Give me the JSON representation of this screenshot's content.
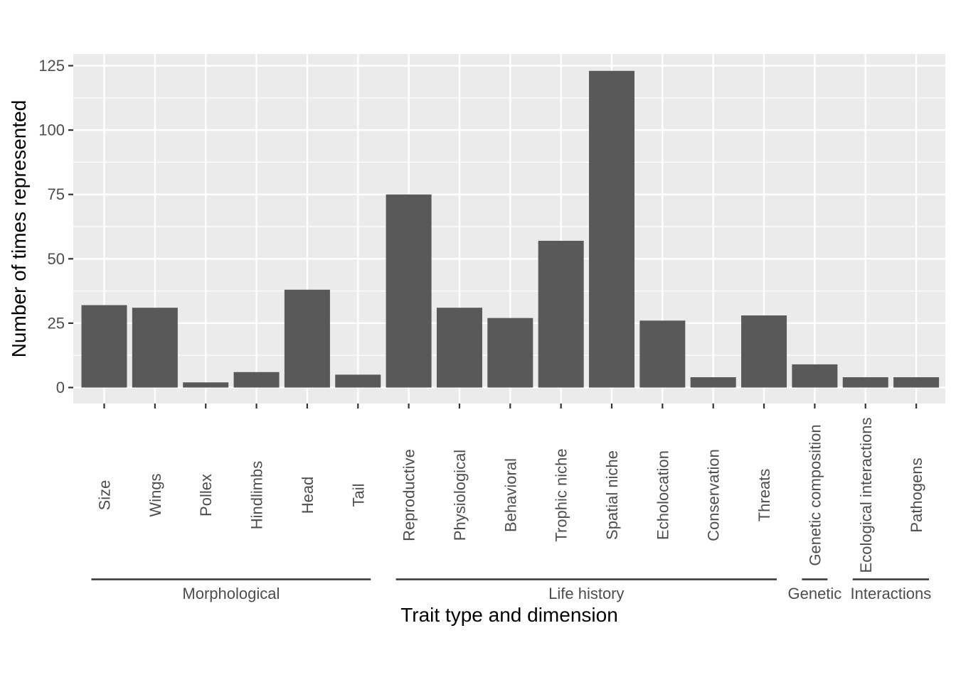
{
  "chart_data": {
    "type": "bar",
    "title": "",
    "xlabel": "Trait type and dimension",
    "ylabel": "Number of times represented",
    "ylim": [
      0,
      125
    ],
    "yticks": [
      0,
      25,
      50,
      75,
      100,
      125
    ],
    "grid": true,
    "legend": "none",
    "categories": [
      "Size",
      "Wings",
      "Pollex",
      "Hindlimbs",
      "Head",
      "Tail",
      "Reproductive",
      "Physiological",
      "Behavioral",
      "Trophic niche",
      "Spatial niche",
      "Echolocation",
      "Conservation",
      "Threats",
      "Genetic composition",
      "Ecological interactions",
      "Pathogens"
    ],
    "values": [
      32,
      31,
      2,
      6,
      38,
      5,
      75,
      31,
      27,
      57,
      123,
      26,
      4,
      28,
      9,
      4,
      4
    ],
    "groups": [
      {
        "name": "Morphological",
        "categories": [
          "Size",
          "Wings",
          "Pollex",
          "Hindlimbs",
          "Head",
          "Tail"
        ]
      },
      {
        "name": "Life history",
        "categories": [
          "Reproductive",
          "Physiological",
          "Behavioral",
          "Trophic niche",
          "Spatial niche",
          "Echolocation",
          "Conservation",
          "Threats"
        ]
      },
      {
        "name": "Genetic",
        "categories": [
          "Genetic composition"
        ]
      },
      {
        "name": "Interactions",
        "categories": [
          "Ecological interactions",
          "Pathogens"
        ]
      }
    ],
    "colors": {
      "bar": "#595959",
      "panel": "#ebebeb",
      "grid_major": "#ffffff",
      "tick_text": "#4d4d4d",
      "group_line": "#333333"
    }
  }
}
